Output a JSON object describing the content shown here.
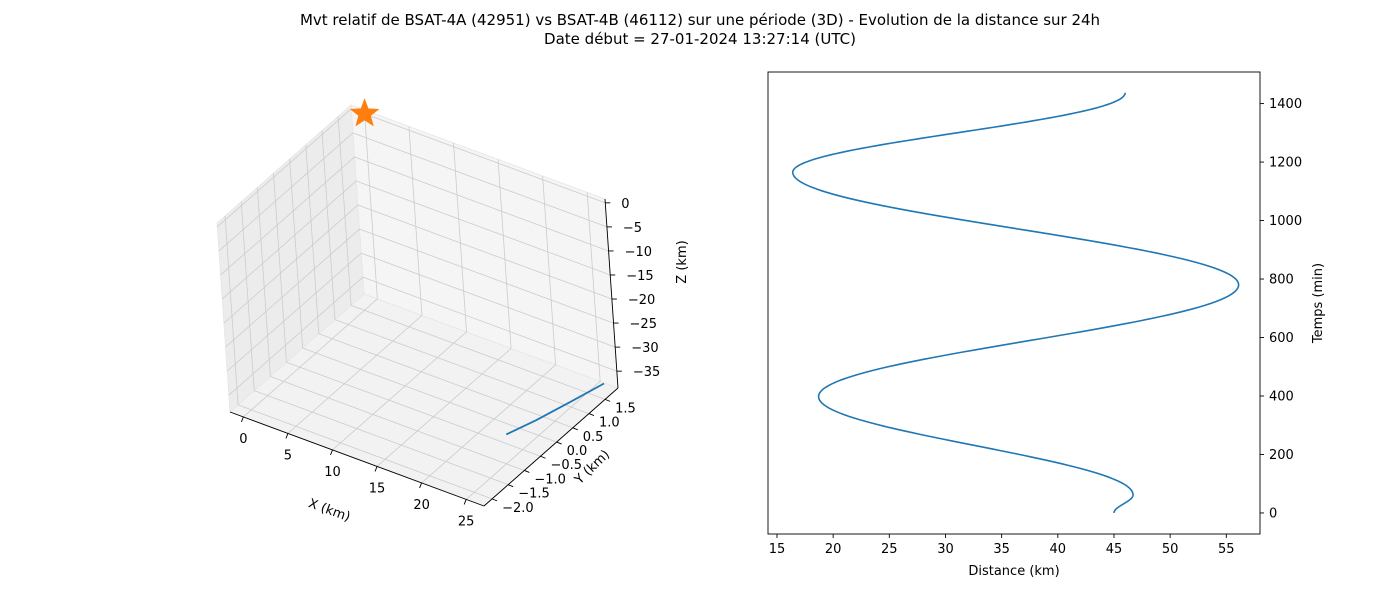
{
  "title": {
    "line1": "Mvt relatif de BSAT-4A (42951) vs BSAT-4B (46112) sur une période (3D) - Evolution de la distance sur 24h",
    "line2": "Date début = 27-01-2024 13:27:14 (UTC)"
  },
  "colors": {
    "series": "#1f77b4",
    "marker": "#ff7f0e",
    "pane": "#f2f2f2",
    "grid": "#cccccc"
  },
  "chart_data": [
    {
      "type": "line",
      "projection": "3d",
      "xlabel": "X (km)",
      "ylabel": "Y (km)",
      "zlabel": "Z (km)",
      "xlim": [
        -1.5,
        27
      ],
      "ylim": [
        -2.25,
        1.9
      ],
      "zlim": [
        -38.5,
        0.8
      ],
      "xticks": [
        0,
        5,
        10,
        15,
        20,
        25
      ],
      "yticks": [
        -2.0,
        -1.5,
        -1.0,
        -0.5,
        0.0,
        0.5,
        1.0,
        1.5
      ],
      "zticks": [
        0,
        -5,
        -10,
        -15,
        -20,
        -25,
        -30,
        -35
      ],
      "xticklabels": [
        "0",
        "5",
        "10",
        "15",
        "20",
        "25"
      ],
      "yticklabels": [
        "−2.0",
        "−1.5",
        "−1.0",
        "−0.5",
        "0.0",
        "0.5",
        "1.0",
        "1.5"
      ],
      "zticklabels": [
        "0",
        "−5",
        "−10",
        "−15",
        "−20",
        "−25",
        "−30",
        "−35"
      ],
      "grid": true,
      "series": [
        {
          "x": [
            26.0,
            26.4,
            26.8,
            27.0
          ],
          "y": [
            -1.2,
            -0.4,
            0.6,
            1.5
          ],
          "z": [
            -30.5,
            -32.0,
            -33.6,
            -35.2
          ]
        }
      ],
      "marker": {
        "shape": "star",
        "x": 0,
        "y": 1.9,
        "z": 0
      }
    },
    {
      "type": "line",
      "xlabel": "Distance (km)",
      "ylabel": "Temps (min)",
      "xlim": [
        14.2,
        58.0
      ],
      "ylim": [
        -72,
        1508
      ],
      "xticks": [
        15,
        20,
        25,
        30,
        35,
        40,
        45,
        50,
        55
      ],
      "yticks": [
        0,
        200,
        400,
        600,
        800,
        1000,
        1200,
        1400
      ],
      "yaxis_position": "right",
      "grid": false,
      "series": [
        {
          "x": [
            45.0,
            46.7,
            18.7,
            56.1,
            16.4,
            46.0
          ],
          "y": [
            0,
            62,
            398,
            780,
            1165,
            1437
          ]
        }
      ]
    }
  ]
}
